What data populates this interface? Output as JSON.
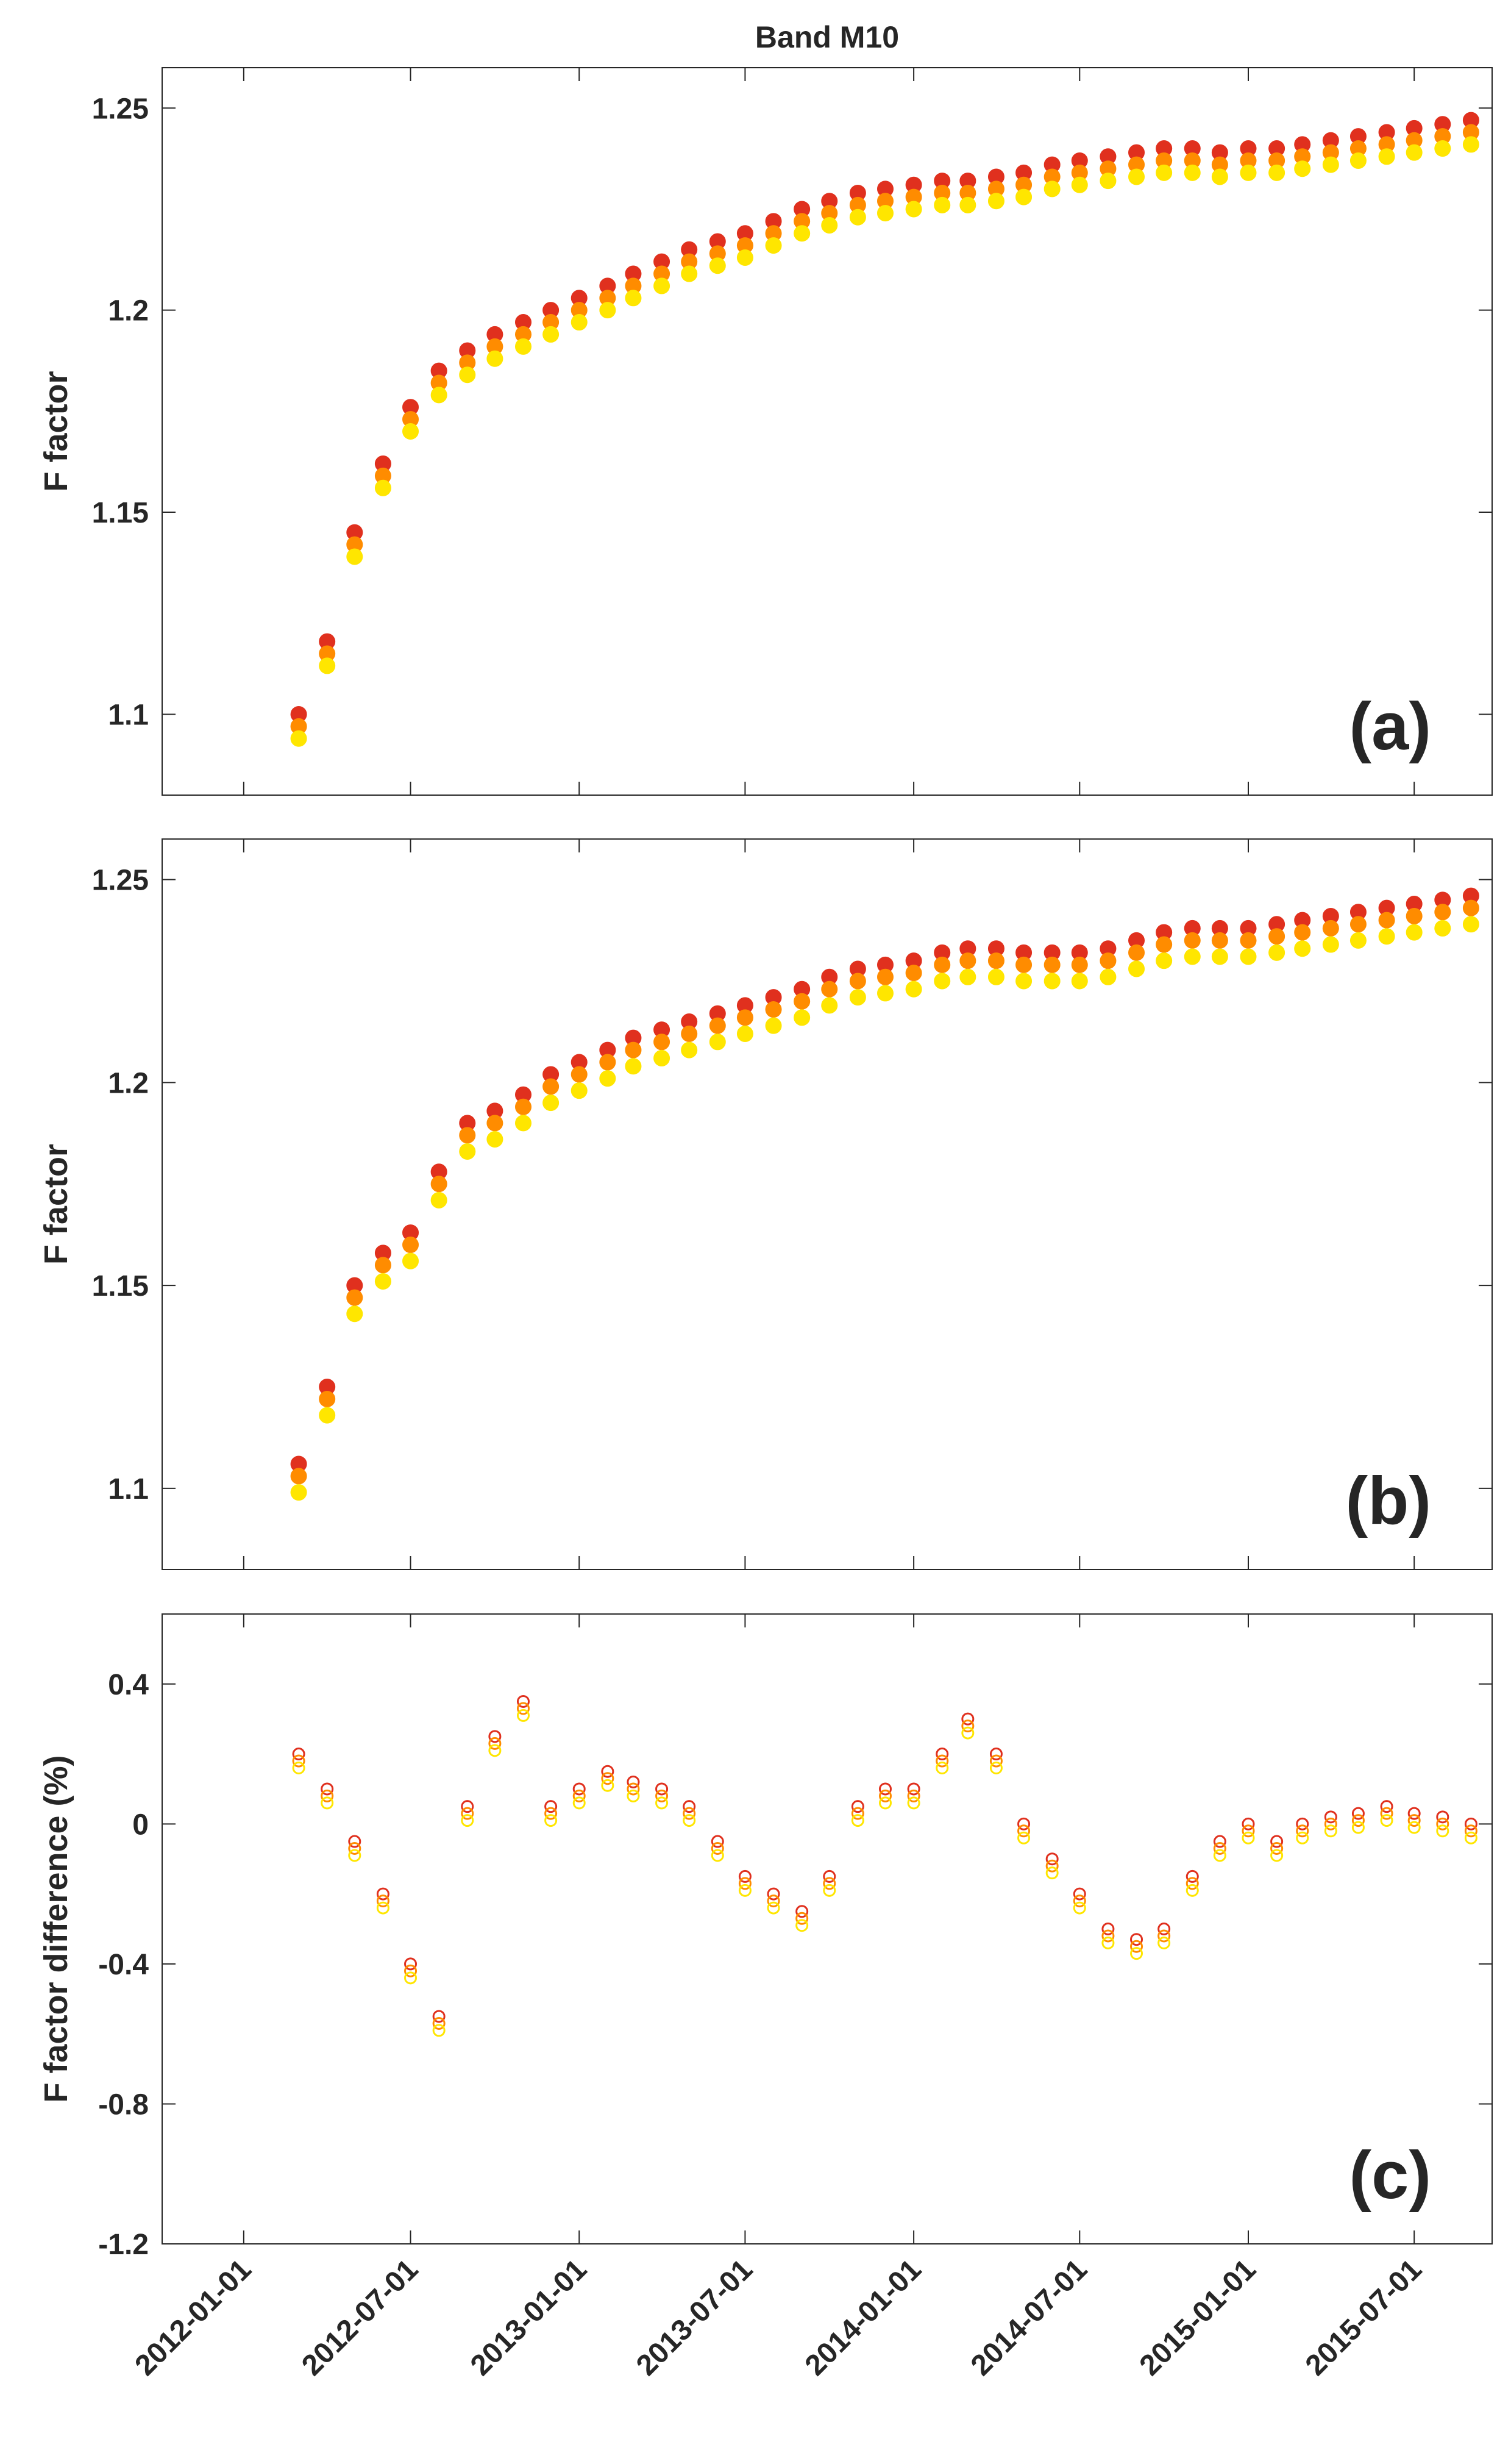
{
  "chart_data": [
    {
      "type": "scatter",
      "title": "Band M10",
      "ylabel": "F factor",
      "annotation": "(a)",
      "markers": "filled",
      "xtick_labels": false,
      "xlim": [
        "2011-10-04",
        "2015-09-24"
      ],
      "xticks": [
        "2012-01-01",
        "2012-07-01",
        "2013-01-01",
        "2013-07-01",
        "2014-01-01",
        "2014-07-01",
        "2015-01-01",
        "2015-07-01"
      ],
      "ylim": [
        1.08,
        1.26
      ],
      "yticks": [
        1.1,
        1.15,
        1.2,
        1.25
      ],
      "x": [
        "2012-03-01",
        "2012-04-01",
        "2012-05-01",
        "2012-06-01",
        "2012-07-01",
        "2012-08-01",
        "2012-09-01",
        "2012-10-01",
        "2012-11-01",
        "2012-12-01",
        "2013-01-01",
        "2013-02-01",
        "2013-03-01",
        "2013-04-01",
        "2013-05-01",
        "2013-06-01",
        "2013-07-01",
        "2013-08-01",
        "2013-09-01",
        "2013-10-01",
        "2013-11-01",
        "2013-12-01",
        "2014-01-01",
        "2014-02-01",
        "2014-03-01",
        "2014-04-01",
        "2014-05-01",
        "2014-06-01",
        "2014-07-01",
        "2014-08-01",
        "2014-09-01",
        "2014-10-01",
        "2014-11-01",
        "2014-12-01",
        "2015-01-01",
        "2015-02-01",
        "2015-03-01",
        "2015-04-01",
        "2015-05-01",
        "2015-06-01",
        "2015-07-01",
        "2015-08-01",
        "2015-09-01"
      ],
      "series": [
        {
          "color": "#e0301e",
          "values": [
            1.1,
            1.118,
            1.145,
            1.162,
            1.176,
            1.185,
            1.19,
            1.194,
            1.197,
            1.2,
            1.203,
            1.206,
            1.209,
            1.212,
            1.215,
            1.217,
            1.219,
            1.222,
            1.225,
            1.227,
            1.229,
            1.23,
            1.231,
            1.232,
            1.232,
            1.233,
            1.234,
            1.236,
            1.237,
            1.238,
            1.239,
            1.24,
            1.24,
            1.239,
            1.24,
            1.24,
            1.241,
            1.242,
            1.243,
            1.244,
            1.245,
            1.246,
            1.247
          ]
        },
        {
          "color": "#ff8c00",
          "values": [
            1.097,
            1.115,
            1.142,
            1.159,
            1.173,
            1.182,
            1.187,
            1.191,
            1.194,
            1.197,
            1.2,
            1.203,
            1.206,
            1.209,
            1.212,
            1.214,
            1.216,
            1.219,
            1.222,
            1.224,
            1.226,
            1.227,
            1.228,
            1.229,
            1.229,
            1.23,
            1.231,
            1.233,
            1.234,
            1.235,
            1.236,
            1.237,
            1.237,
            1.236,
            1.237,
            1.237,
            1.238,
            1.239,
            1.24,
            1.241,
            1.242,
            1.243,
            1.244
          ]
        },
        {
          "color": "#ffe600",
          "values": [
            1.094,
            1.112,
            1.139,
            1.156,
            1.17,
            1.179,
            1.184,
            1.188,
            1.191,
            1.194,
            1.197,
            1.2,
            1.203,
            1.206,
            1.209,
            1.211,
            1.213,
            1.216,
            1.219,
            1.221,
            1.223,
            1.224,
            1.225,
            1.226,
            1.226,
            1.227,
            1.228,
            1.23,
            1.231,
            1.232,
            1.233,
            1.234,
            1.234,
            1.233,
            1.234,
            1.234,
            1.235,
            1.236,
            1.237,
            1.238,
            1.239,
            1.24,
            1.241
          ]
        }
      ]
    },
    {
      "type": "scatter",
      "ylabel": "F factor",
      "annotation": "(b)",
      "markers": "filled",
      "xtick_labels": false,
      "xlim": [
        "2011-10-04",
        "2015-09-24"
      ],
      "xticks": [
        "2012-01-01",
        "2012-07-01",
        "2013-01-01",
        "2013-07-01",
        "2014-01-01",
        "2014-07-01",
        "2015-01-01",
        "2015-07-01"
      ],
      "ylim": [
        1.08,
        1.26
      ],
      "yticks": [
        1.1,
        1.15,
        1.2,
        1.25
      ],
      "x": [
        "2012-03-01",
        "2012-04-01",
        "2012-05-01",
        "2012-06-01",
        "2012-07-01",
        "2012-08-01",
        "2012-09-01",
        "2012-10-01",
        "2012-11-01",
        "2012-12-01",
        "2013-01-01",
        "2013-02-01",
        "2013-03-01",
        "2013-04-01",
        "2013-05-01",
        "2013-06-01",
        "2013-07-01",
        "2013-08-01",
        "2013-09-01",
        "2013-10-01",
        "2013-11-01",
        "2013-12-01",
        "2014-01-01",
        "2014-02-01",
        "2014-03-01",
        "2014-04-01",
        "2014-05-01",
        "2014-06-01",
        "2014-07-01",
        "2014-08-01",
        "2014-09-01",
        "2014-10-01",
        "2014-11-01",
        "2014-12-01",
        "2015-01-01",
        "2015-02-01",
        "2015-03-01",
        "2015-04-01",
        "2015-05-01",
        "2015-06-01",
        "2015-07-01",
        "2015-08-01",
        "2015-09-01"
      ],
      "series": [
        {
          "color": "#e0301e",
          "values": [
            1.106,
            1.125,
            1.15,
            1.158,
            1.163,
            1.178,
            1.19,
            1.193,
            1.197,
            1.202,
            1.205,
            1.208,
            1.211,
            1.213,
            1.215,
            1.217,
            1.219,
            1.221,
            1.223,
            1.226,
            1.228,
            1.229,
            1.23,
            1.232,
            1.233,
            1.233,
            1.232,
            1.232,
            1.232,
            1.233,
            1.235,
            1.237,
            1.238,
            1.238,
            1.238,
            1.239,
            1.24,
            1.241,
            1.242,
            1.243,
            1.244,
            1.245,
            1.246
          ]
        },
        {
          "color": "#ff8c00",
          "values": [
            1.103,
            1.122,
            1.147,
            1.155,
            1.16,
            1.175,
            1.187,
            1.19,
            1.194,
            1.199,
            1.202,
            1.205,
            1.208,
            1.21,
            1.212,
            1.214,
            1.216,
            1.218,
            1.22,
            1.223,
            1.225,
            1.226,
            1.227,
            1.229,
            1.23,
            1.23,
            1.229,
            1.229,
            1.229,
            1.23,
            1.232,
            1.234,
            1.235,
            1.235,
            1.235,
            1.236,
            1.237,
            1.238,
            1.239,
            1.24,
            1.241,
            1.242,
            1.243
          ]
        },
        {
          "color": "#ffe600",
          "values": [
            1.099,
            1.118,
            1.143,
            1.151,
            1.156,
            1.171,
            1.183,
            1.186,
            1.19,
            1.195,
            1.198,
            1.201,
            1.204,
            1.206,
            1.208,
            1.21,
            1.212,
            1.214,
            1.216,
            1.219,
            1.221,
            1.222,
            1.223,
            1.225,
            1.226,
            1.226,
            1.225,
            1.225,
            1.225,
            1.226,
            1.228,
            1.23,
            1.231,
            1.231,
            1.231,
            1.232,
            1.233,
            1.234,
            1.235,
            1.236,
            1.237,
            1.238,
            1.239
          ]
        }
      ]
    },
    {
      "type": "scatter",
      "ylabel": "F factor difference (%)",
      "annotation": "(c)",
      "markers": "open",
      "xtick_labels": true,
      "xlim": [
        "2011-10-04",
        "2015-09-24"
      ],
      "xticks": [
        "2012-01-01",
        "2012-07-01",
        "2013-01-01",
        "2013-07-01",
        "2014-01-01",
        "2014-07-01",
        "2015-01-01",
        "2015-07-01"
      ],
      "ylim": [
        -1.2,
        0.6
      ],
      "yticks": [
        -1.2,
        -0.8,
        -0.4,
        0,
        0.4
      ],
      "x": [
        "2012-03-01",
        "2012-04-01",
        "2012-05-01",
        "2012-06-01",
        "2012-07-01",
        "2012-08-01",
        "2012-09-01",
        "2012-10-01",
        "2012-11-01",
        "2012-12-01",
        "2013-01-01",
        "2013-02-01",
        "2013-03-01",
        "2013-04-01",
        "2013-05-01",
        "2013-06-01",
        "2013-07-01",
        "2013-08-01",
        "2013-09-01",
        "2013-10-01",
        "2013-11-01",
        "2013-12-01",
        "2014-01-01",
        "2014-02-01",
        "2014-03-01",
        "2014-04-01",
        "2014-05-01",
        "2014-06-01",
        "2014-07-01",
        "2014-08-01",
        "2014-09-01",
        "2014-10-01",
        "2014-11-01",
        "2014-12-01",
        "2015-01-01",
        "2015-02-01",
        "2015-03-01",
        "2015-04-01",
        "2015-05-01",
        "2015-06-01",
        "2015-07-01",
        "2015-08-01",
        "2015-09-01"
      ],
      "series": [
        {
          "color": "#e0301e",
          "values": [
            0.2,
            0.1,
            -0.05,
            -0.2,
            -0.4,
            -0.55,
            0.05,
            0.25,
            0.35,
            0.05,
            0.1,
            0.15,
            0.12,
            0.1,
            0.05,
            -0.05,
            -0.15,
            -0.2,
            -0.25,
            -0.15,
            0.05,
            0.1,
            0.1,
            0.2,
            0.3,
            0.2,
            0.0,
            -0.1,
            -0.2,
            -0.3,
            -0.33,
            -0.3,
            -0.15,
            -0.05,
            0.0,
            -0.05,
            0.0,
            0.02,
            0.03,
            0.05,
            0.03,
            0.02,
            0.0
          ]
        },
        {
          "color": "#ff8c00",
          "values": [
            0.18,
            0.08,
            -0.07,
            -0.22,
            -0.42,
            -0.57,
            0.03,
            0.23,
            0.33,
            0.03,
            0.08,
            0.13,
            0.1,
            0.08,
            0.03,
            -0.07,
            -0.17,
            -0.22,
            -0.27,
            -0.17,
            0.03,
            0.08,
            0.08,
            0.18,
            0.28,
            0.18,
            -0.02,
            -0.12,
            -0.22,
            -0.32,
            -0.35,
            -0.32,
            -0.17,
            -0.07,
            -0.02,
            -0.07,
            -0.02,
            0.0,
            0.01,
            0.03,
            0.01,
            0.0,
            -0.02
          ]
        },
        {
          "color": "#ffe600",
          "values": [
            0.16,
            0.06,
            -0.09,
            -0.24,
            -0.44,
            -0.59,
            0.01,
            0.21,
            0.31,
            0.01,
            0.06,
            0.11,
            0.08,
            0.06,
            0.01,
            -0.09,
            -0.19,
            -0.24,
            -0.29,
            -0.19,
            0.01,
            0.06,
            0.06,
            0.16,
            0.26,
            0.16,
            -0.04,
            -0.14,
            -0.24,
            -0.34,
            -0.37,
            -0.34,
            -0.19,
            -0.09,
            -0.04,
            -0.09,
            -0.04,
            -0.02,
            -0.01,
            0.01,
            -0.01,
            -0.02,
            -0.04
          ]
        }
      ]
    }
  ]
}
